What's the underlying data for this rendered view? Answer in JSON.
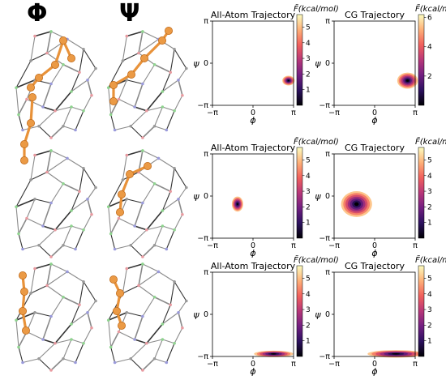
{
  "column_headers": {
    "phi": "Φ",
    "psi": "Ψ"
  },
  "colormap": [
    "#000004",
    "#2c115f",
    "#721f81",
    "#b73779",
    "#f1605d",
    "#feb078",
    "#fcfdbf"
  ],
  "chart_data": [
    {
      "type": "heatmap",
      "row": 0,
      "title": "All-Atom Trajectory",
      "xlabel": "ϕ",
      "ylabel": "ψ",
      "xlim": [
        -3.14159,
        3.14159
      ],
      "ylim": [
        -3.14159,
        3.14159
      ],
      "xtick_labels": [
        "−π",
        "0",
        "π"
      ],
      "ytick_labels": [
        "−π",
        "0",
        "π"
      ],
      "colorbar": {
        "label": "F̃(kcal/mol)",
        "min": 0,
        "max": 5.8,
        "ticks": [
          1,
          2,
          3,
          4,
          5
        ]
      },
      "density": [
        {
          "phi": 2.75,
          "psi": -1.3,
          "sx": 0.12,
          "sy": 0.09
        }
      ]
    },
    {
      "type": "heatmap",
      "row": 0,
      "title": "CG Trajectory",
      "xlabel": "ϕ",
      "ylabel": "ψ",
      "xlim": [
        -3.14159,
        3.14159
      ],
      "ylim": [
        -3.14159,
        3.14159
      ],
      "xtick_labels": [
        "−π",
        "0",
        "π"
      ],
      "ytick_labels": [
        "−π",
        "0",
        "π"
      ],
      "colorbar": {
        "label": "F̃(kcal/mol)",
        "min": 0,
        "max": 6.2,
        "ticks": [
          2,
          4,
          6
        ]
      },
      "density": [
        {
          "phi": 2.55,
          "psi": -1.3,
          "sx": 0.2,
          "sy": 0.15
        }
      ]
    },
    {
      "type": "heatmap",
      "row": 1,
      "title": "All-Atom Trajectory",
      "xlabel": "ϕ",
      "ylabel": "ψ",
      "xlim": [
        -3.14159,
        3.14159
      ],
      "ylim": [
        -3.14159,
        3.14159
      ],
      "xtick_labels": [
        "−π",
        "0",
        "π"
      ],
      "ytick_labels": [
        "−π",
        "0",
        "π"
      ],
      "colorbar": {
        "label": "F̃(kcal/mol)",
        "min": 0,
        "max": 5.8,
        "ticks": [
          1,
          2,
          3,
          4,
          5
        ]
      },
      "density": [
        {
          "phi": -1.2,
          "psi": -0.6,
          "sx": 0.11,
          "sy": 0.14
        }
      ]
    },
    {
      "type": "heatmap",
      "row": 1,
      "title": "CG Trajectory",
      "xlabel": "ϕ",
      "ylabel": "ψ",
      "xlim": [
        -3.14159,
        3.14159
      ],
      "ylim": [
        -3.14159,
        3.14159
      ],
      "xtick_labels": [
        "−π",
        "0",
        "π"
      ],
      "ytick_labels": [
        "−π",
        "0",
        "π"
      ],
      "colorbar": {
        "label": "F̃(kcal/mol)",
        "min": 0,
        "max": 5.8,
        "ticks": [
          1,
          2,
          3,
          4,
          5
        ]
      },
      "density": [
        {
          "phi": -1.4,
          "psi": -0.6,
          "sx": 0.3,
          "sy": 0.24
        }
      ]
    },
    {
      "type": "heatmap",
      "row": 2,
      "title": "All-Atom Trajectory",
      "xlabel": "ϕ",
      "ylabel": "ψ",
      "xlim": [
        -3.14159,
        3.14159
      ],
      "ylim": [
        -3.14159,
        3.14159
      ],
      "xtick_labels": [
        "−π",
        "0",
        "π"
      ],
      "ytick_labels": [
        "−π",
        "0",
        "π"
      ],
      "colorbar": {
        "label": "F̃(kcal/mol)",
        "min": 0,
        "max": 5.8,
        "ticks": [
          1,
          2,
          3,
          4,
          5
        ]
      },
      "density": [
        {
          "phi": 1.6,
          "psi": -2.95,
          "sx": 0.38,
          "sy": 0.06
        }
      ]
    },
    {
      "type": "heatmap",
      "row": 2,
      "title": "CG Trajectory",
      "xlabel": "ϕ",
      "ylabel": "ψ",
      "xlim": [
        -3.14159,
        3.14159
      ],
      "ylim": [
        -3.14159,
        3.14159
      ],
      "xtick_labels": [
        "−π",
        "0",
        "π"
      ],
      "ytick_labels": [
        "−π",
        "0",
        "π"
      ],
      "colorbar": {
        "label": "F̃(kcal/mol)",
        "min": 0,
        "max": 5.8,
        "ticks": [
          1,
          2,
          3,
          4,
          5
        ]
      },
      "density": [
        {
          "phi": 1.65,
          "psi": -2.95,
          "sx": 0.55,
          "sy": 0.07
        }
      ]
    }
  ]
}
